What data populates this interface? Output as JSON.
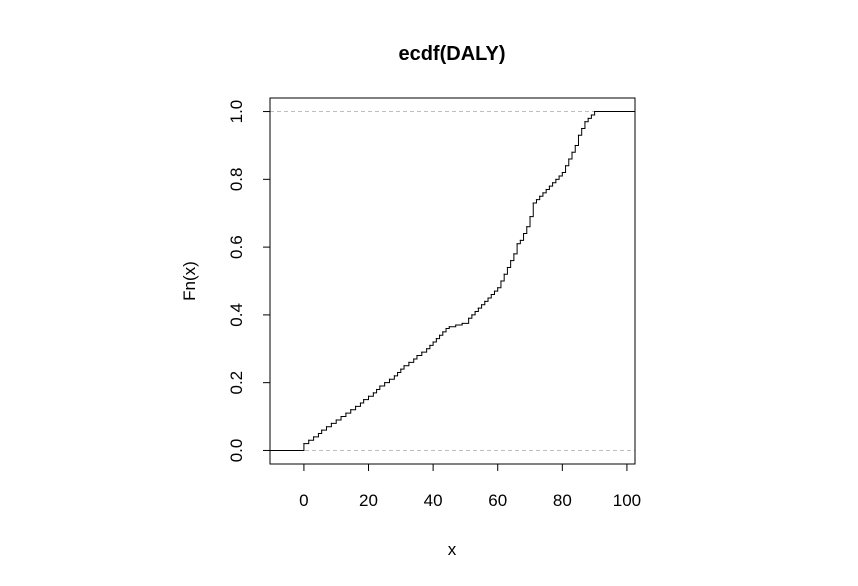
{
  "chart_data": {
    "type": "line",
    "subtype": "ecdf-step",
    "title": "ecdf(DALY)",
    "xlabel": "x",
    "ylabel": "Fn(x)",
    "xlim": [
      -10.5,
      102.5
    ],
    "ylim": [
      -0.04,
      1.04
    ],
    "xticks": [
      0,
      20,
      40,
      60,
      80,
      100
    ],
    "xtick_labels": [
      "0",
      "20",
      "40",
      "60",
      "80",
      "100"
    ],
    "yticks": [
      0.0,
      0.2,
      0.4,
      0.6,
      0.8,
      1.0
    ],
    "ytick_labels": [
      "0.0",
      "0.2",
      "0.4",
      "0.6",
      "0.8",
      "1.0"
    ],
    "reference_lines": [
      0,
      1
    ],
    "grid": false,
    "legend": "none",
    "colors": {
      "line": "#000000",
      "reference": "#bebebe"
    },
    "series": [
      {
        "x": [
          0,
          1.5,
          3,
          4.5,
          5.5,
          7,
          8.5,
          10,
          11.5,
          13,
          14.5,
          16,
          17.5,
          18.5,
          20,
          21.5,
          22.5,
          23.5,
          25,
          26.5,
          28,
          29,
          30,
          31,
          32.5,
          34,
          35,
          36.5,
          38,
          39,
          40,
          41,
          42,
          43,
          44,
          45,
          47,
          49,
          51,
          52,
          53,
          54,
          55,
          56,
          57,
          58,
          59,
          60,
          61,
          62,
          63,
          64,
          65,
          66,
          67,
          68,
          69,
          70,
          71,
          72,
          73,
          74,
          75,
          76,
          77,
          78,
          79,
          80,
          81,
          82,
          83,
          84,
          85,
          86,
          87,
          88,
          89,
          90,
          91
        ],
        "y": [
          0.02,
          0.03,
          0.04,
          0.05,
          0.06,
          0.07,
          0.08,
          0.09,
          0.1,
          0.11,
          0.12,
          0.13,
          0.14,
          0.15,
          0.16,
          0.17,
          0.18,
          0.19,
          0.2,
          0.21,
          0.22,
          0.23,
          0.24,
          0.25,
          0.26,
          0.27,
          0.28,
          0.29,
          0.3,
          0.31,
          0.32,
          0.33,
          0.34,
          0.35,
          0.36,
          0.365,
          0.37,
          0.375,
          0.39,
          0.4,
          0.41,
          0.42,
          0.43,
          0.44,
          0.45,
          0.46,
          0.47,
          0.48,
          0.5,
          0.52,
          0.54,
          0.56,
          0.58,
          0.61,
          0.62,
          0.64,
          0.66,
          0.69,
          0.73,
          0.74,
          0.75,
          0.76,
          0.77,
          0.78,
          0.79,
          0.8,
          0.81,
          0.82,
          0.84,
          0.86,
          0.88,
          0.9,
          0.93,
          0.95,
          0.97,
          0.98,
          0.99,
          1.0,
          1.0
        ]
      }
    ]
  }
}
